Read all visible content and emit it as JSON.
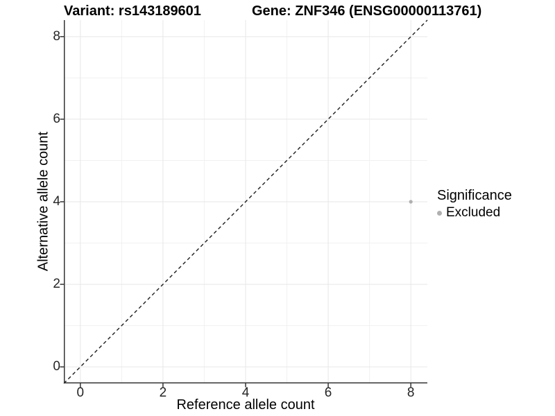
{
  "titles": {
    "variant": "Variant: rs143189601",
    "gene": "Gene: ZNF346 (ENSG00000113761)"
  },
  "axes": {
    "x_label": "Reference allele count",
    "y_label": "Alternative allele count"
  },
  "legend": {
    "title": "Significance",
    "items": [
      {
        "label": "Excluded",
        "color": "#b0b0b0"
      }
    ]
  },
  "chart_data": {
    "type": "scatter",
    "title": "Variant: rs143189601 — Gene: ZNF346 (ENSG00000113761)",
    "xlabel": "Reference allele count",
    "ylabel": "Alternative allele count",
    "xlim": [
      -0.4,
      8.4
    ],
    "ylim": [
      -0.4,
      8.4
    ],
    "x_ticks": [
      0,
      2,
      4,
      6,
      8
    ],
    "y_ticks": [
      0,
      2,
      4,
      6,
      8
    ],
    "grid_minor": [
      1,
      3,
      5,
      7
    ],
    "grid": "on",
    "legend_position": "right",
    "series": [
      {
        "name": "Excluded",
        "color": "#b0b0b0",
        "points": [
          {
            "x": 8,
            "y": 4
          }
        ]
      }
    ],
    "reference_line": {
      "type": "identity",
      "equation": "y = x",
      "style": "dashed",
      "color": "#1a1a1a"
    },
    "colors": {
      "grid_major": "#e7e7e7",
      "grid_minor": "#f1f1f1",
      "axis_line": "#333333",
      "tick_mark": "#333333"
    }
  }
}
